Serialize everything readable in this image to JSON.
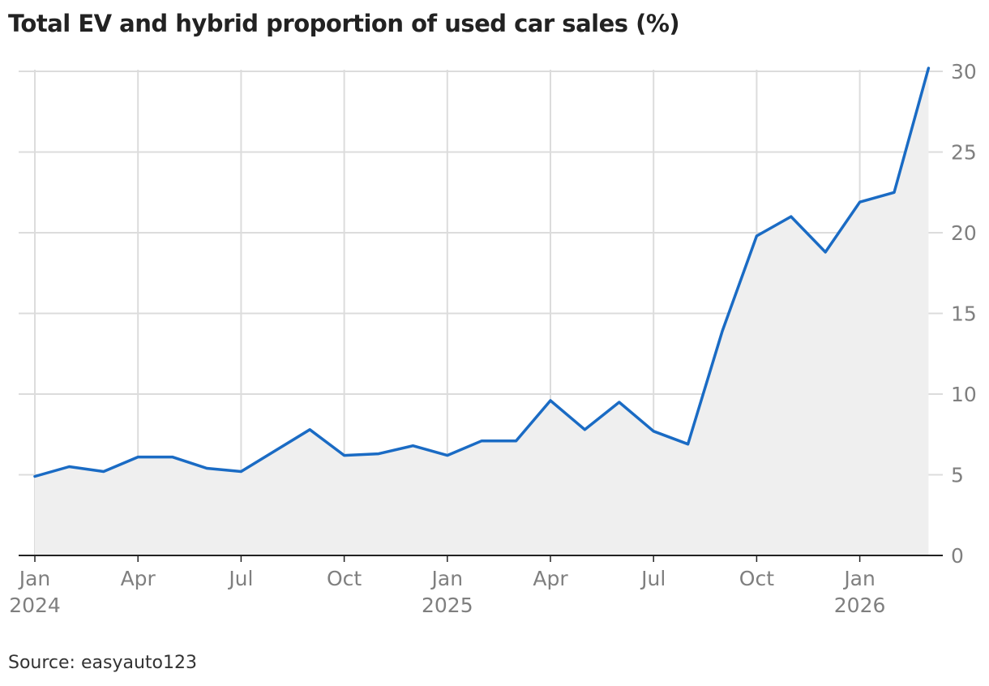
{
  "title": "Total EV and hybrid proportion of used car sales (%)",
  "source": "Source: easyauto123",
  "colors": {
    "line": "#1a6bc4",
    "area": "#efefef",
    "grid": "#dcdcdc",
    "axis": "#222222",
    "tick_text": "#7f7f7f"
  },
  "chart_data": {
    "type": "area",
    "title": "Total EV and hybrid proportion of used car sales (%)",
    "xlabel": "",
    "ylabel": "",
    "x_start": "2024-01",
    "x": [
      "2024-01",
      "2024-02",
      "2024-03",
      "2024-04",
      "2024-05",
      "2024-06",
      "2024-07",
      "2024-08",
      "2024-09",
      "2024-10",
      "2024-11",
      "2024-12",
      "2025-01",
      "2025-02",
      "2025-03",
      "2025-04",
      "2025-05",
      "2025-06",
      "2025-07",
      "2025-08",
      "2025-09",
      "2025-10",
      "2025-11",
      "2025-12",
      "2026-01",
      "2026-02",
      "2026-03"
    ],
    "values": [
      4.9,
      5.5,
      5.2,
      6.1,
      6.1,
      5.4,
      5.2,
      6.5,
      7.8,
      6.2,
      6.3,
      6.8,
      6.2,
      7.1,
      7.1,
      9.6,
      7.8,
      9.5,
      7.7,
      6.9,
      13.9,
      19.8,
      21.0,
      18.8,
      21.9,
      22.5,
      30.2
    ],
    "ylim": [
      0,
      30
    ],
    "y_ticks": [
      "0",
      "5",
      "10",
      "15",
      "20",
      "25",
      "30"
    ],
    "x_ticks": [
      {
        "month": "Jan",
        "year": "2024"
      },
      {
        "month": "Apr",
        "year": ""
      },
      {
        "month": "Jul",
        "year": ""
      },
      {
        "month": "Oct",
        "year": ""
      },
      {
        "month": "Jan",
        "year": "2025"
      },
      {
        "month": "Apr",
        "year": ""
      },
      {
        "month": "Jul",
        "year": ""
      },
      {
        "month": "Oct",
        "year": ""
      },
      {
        "month": "Jan",
        "year": "2026"
      }
    ],
    "x_tick_index": [
      0,
      3,
      6,
      9,
      12,
      15,
      18,
      21,
      24
    ],
    "grid": true,
    "y_axis_side": "right"
  }
}
